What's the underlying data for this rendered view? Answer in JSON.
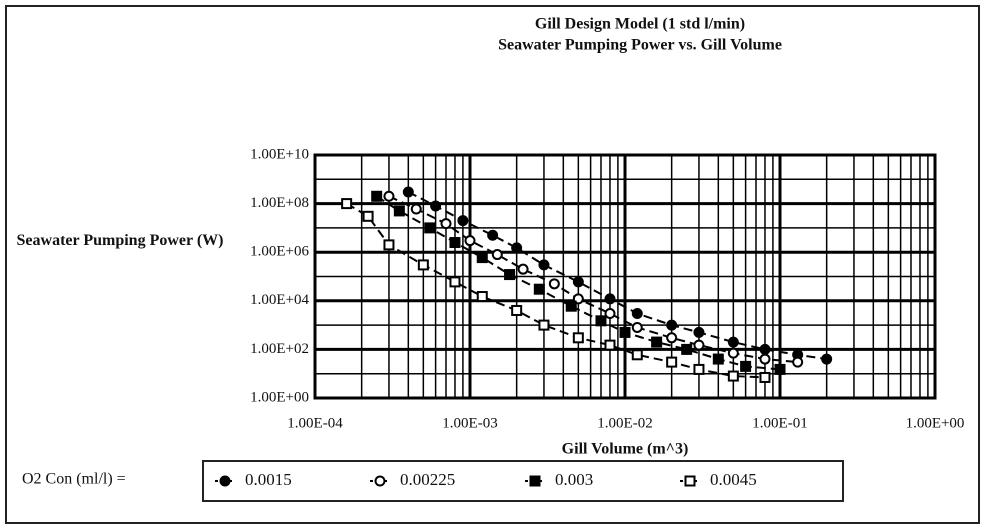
{
  "chart_data": {
    "type": "line",
    "title": "Gill Design Model (1 std l/min)",
    "subtitle": "Seawater Pumping Power vs. Gill Volume",
    "xlabel": "Gill Volume (m^3)",
    "ylabel": "Seawater Pumping Power (W)",
    "legend_title": "O2 Con (ml/l) =",
    "xlog": true,
    "ylog": true,
    "grid": true,
    "color": "#000000",
    "xlim": [
      0.0001,
      1
    ],
    "ylim": [
      1,
      10000000000
    ],
    "xticks": [
      {
        "value": 0.0001,
        "label": "1.00E-04"
      },
      {
        "value": 0.001,
        "label": "1.00E-03"
      },
      {
        "value": 0.01,
        "label": "1.00E-02"
      },
      {
        "value": 0.1,
        "label": "1.00E-01"
      },
      {
        "value": 1,
        "label": "1.00E+00"
      }
    ],
    "yticks": [
      {
        "value": 1,
        "label": "1.00E+00"
      },
      {
        "value": 100,
        "label": "1.00E+02"
      },
      {
        "value": 10000,
        "label": "1.00E+04"
      },
      {
        "value": 1000000,
        "label": "1.00E+06"
      },
      {
        "value": 100000000,
        "label": "1.00E+08"
      },
      {
        "value": 10000000000,
        "label": "1.00E+10"
      }
    ],
    "series": [
      {
        "name": "0.0015",
        "marker": "filled-circle",
        "color": "#000000",
        "x": [
          0.0004,
          0.0006,
          0.0009,
          0.0014,
          0.002,
          0.003,
          0.005,
          0.008,
          0.012,
          0.02,
          0.03,
          0.05,
          0.08,
          0.13,
          0.2
        ],
        "values": [
          300000000,
          80000000,
          20000000,
          5000000,
          1500000,
          300000,
          60000,
          12000,
          3000,
          1000,
          500,
          200,
          100,
          60,
          40
        ]
      },
      {
        "name": "0.00225",
        "marker": "open-circle",
        "color": "#000000",
        "x": [
          0.0003,
          0.00045,
          0.0007,
          0.001,
          0.0015,
          0.0022,
          0.0035,
          0.005,
          0.008,
          0.012,
          0.02,
          0.03,
          0.05,
          0.08,
          0.13
        ],
        "values": [
          200000000,
          60000000,
          15000000,
          3000000,
          800000,
          200000,
          50000,
          12000,
          3000,
          800,
          300,
          150,
          70,
          40,
          30
        ]
      },
      {
        "name": "0.003",
        "marker": "filled-square",
        "color": "#000000",
        "x": [
          0.00025,
          0.00035,
          0.00055,
          0.0008,
          0.0012,
          0.0018,
          0.0028,
          0.0045,
          0.007,
          0.01,
          0.016,
          0.025,
          0.04,
          0.06,
          0.1
        ],
        "values": [
          200000000,
          50000000,
          10000000,
          2500000,
          600000,
          120000,
          30000,
          6000,
          1500,
          500,
          200,
          100,
          40,
          20,
          15
        ]
      },
      {
        "name": "0.0045",
        "marker": "open-square",
        "color": "#000000",
        "x": [
          0.00016,
          0.00022,
          0.0003,
          0.0005,
          0.0008,
          0.0012,
          0.002,
          0.003,
          0.005,
          0.008,
          0.012,
          0.02,
          0.03,
          0.05,
          0.08
        ],
        "values": [
          100000000,
          30000000,
          2000000,
          300000,
          60000,
          15000,
          4000,
          1000,
          300,
          150,
          60,
          30,
          15,
          8,
          7
        ]
      }
    ]
  }
}
